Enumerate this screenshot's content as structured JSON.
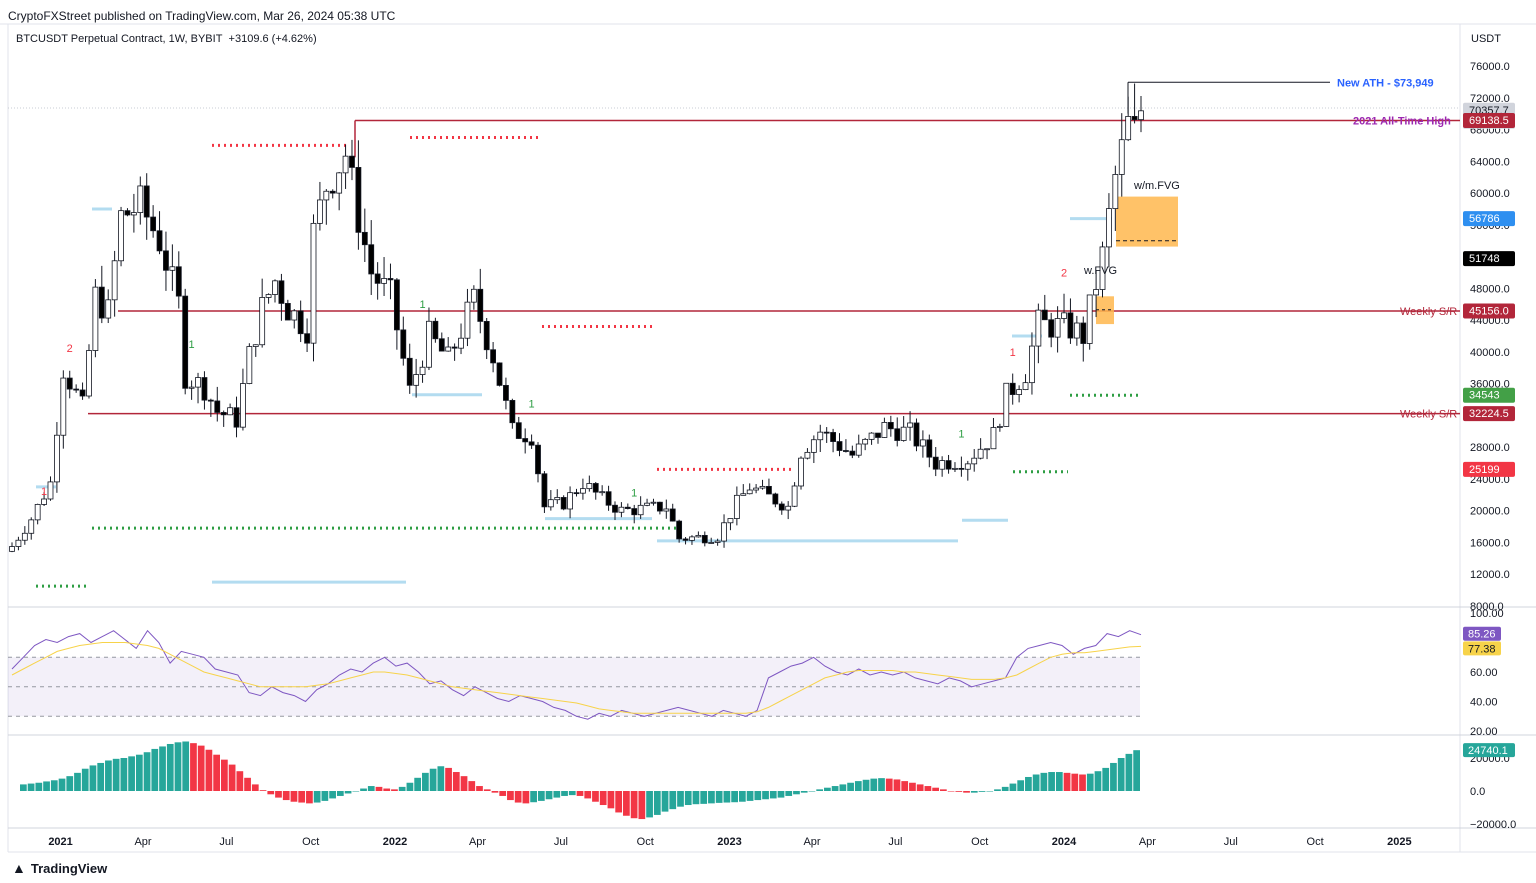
{
  "header": {
    "published": "CryptoFXStreet published on TradingView.com, Mar 26, 2024 05:38 UTC",
    "symbol": "BTCUSDT Perpetual Contract, 1W, BYBIT",
    "change": "+3109.6 (+4.62%)",
    "currency": "USDT"
  },
  "footer": {
    "brand": "TradingView"
  },
  "colors": {
    "up": "#ffffff",
    "down": "#000000",
    "sr": "#b2263a",
    "rsi": "#7e57c2",
    "rsi_ma": "#f7d34a",
    "hist_pos": "#26a69a",
    "hist_neg": "#f23645"
  },
  "chart_data": [
    {
      "type": "candlestick",
      "title": "BTCUSDT Perpetual Contract, 1W, BYBIT",
      "y_ticks": [
        8000,
        12000,
        16000,
        20000,
        24000,
        28000,
        32000,
        36000,
        40000,
        44000,
        48000,
        52000,
        56000,
        60000,
        64000,
        68000,
        72000,
        76000
      ],
      "y_tick_labels": [
        "8000.0",
        "12000.0",
        "16000.0",
        "20000.0",
        "24000.0",
        "28000.0",
        "32000.0",
        "36000.0",
        "40000.0",
        "44000.0",
        "48000.0",
        "52000.0",
        "56000.0",
        "60000.0",
        "64000.0",
        "68000.0",
        "72000.0",
        "76000.0"
      ],
      "x_ticks": [
        "2021",
        "Apr",
        "Jul",
        "Oct",
        "2022",
        "Apr",
        "Jul",
        "Oct",
        "2023",
        "Apr",
        "Jul",
        "Oct",
        "2024",
        "Apr",
        "Jul",
        "Oct",
        "2025"
      ],
      "x_tick_dates": [
        "2021-01-01",
        "2021-04-01",
        "2021-07-01",
        "2021-10-01",
        "2022-01-01",
        "2022-04-01",
        "2022-07-01",
        "2022-10-01",
        "2023-01-01",
        "2023-04-01",
        "2023-07-01",
        "2023-10-01",
        "2024-01-01",
        "2024-04-01",
        "2024-07-01",
        "2024-10-01",
        "2025-01-01"
      ],
      "close_path": [
        [
          "2020-11-09",
          15500
        ],
        [
          "2020-11-30",
          19000
        ],
        [
          "2020-12-21",
          23500
        ],
        [
          "2021-01-04",
          38000
        ],
        [
          "2021-01-25",
          33000
        ],
        [
          "2021-02-08",
          47000
        ],
        [
          "2021-02-22",
          45000
        ],
        [
          "2021-03-08",
          57000
        ],
        [
          "2021-03-29",
          58500
        ],
        [
          "2021-04-19",
          54000
        ],
        [
          "2021-05-10",
          46000
        ],
        [
          "2021-05-17",
          37000
        ],
        [
          "2021-06-07",
          35500
        ],
        [
          "2021-06-21",
          32500
        ],
        [
          "2021-07-12",
          31500
        ],
        [
          "2021-07-26",
          39500
        ],
        [
          "2021-08-09",
          45500
        ],
        [
          "2021-08-23",
          49000
        ],
        [
          "2021-09-06",
          45500
        ],
        [
          "2021-09-27",
          43000
        ],
        [
          "2021-10-04",
          55000
        ],
        [
          "2021-10-18",
          61000
        ],
        [
          "2021-11-08",
          65000
        ],
        [
          "2021-11-22",
          57000
        ],
        [
          "2021-12-06",
          50000
        ],
        [
          "2021-12-27",
          47000
        ],
        [
          "2022-01-17",
          35000
        ],
        [
          "2022-02-07",
          42000
        ],
        [
          "2022-02-28",
          39000
        ],
        [
          "2022-03-28",
          46500
        ],
        [
          "2022-04-18",
          39500
        ],
        [
          "2022-05-09",
          30000
        ],
        [
          "2022-05-30",
          29500
        ],
        [
          "2022-06-13",
          20500
        ],
        [
          "2022-07-04",
          21000
        ],
        [
          "2022-07-25",
          23500
        ],
        [
          "2022-08-15",
          21500
        ],
        [
          "2022-09-05",
          20000
        ],
        [
          "2022-10-24",
          20500
        ],
        [
          "2022-11-07",
          16500
        ],
        [
          "2022-12-19",
          16800
        ],
        [
          "2023-01-09",
          21000
        ],
        [
          "2023-01-23",
          23000
        ],
        [
          "2023-03-06",
          20500
        ],
        [
          "2023-03-20",
          27500
        ],
        [
          "2023-04-10",
          30000
        ],
        [
          "2023-05-15",
          27000
        ],
        [
          "2023-06-19",
          30500
        ],
        [
          "2023-07-17",
          29800
        ],
        [
          "2023-08-14",
          26000
        ],
        [
          "2023-09-18",
          26500
        ],
        [
          "2023-10-16",
          29500
        ],
        [
          "2023-10-30",
          34500
        ],
        [
          "2023-11-20",
          37500
        ],
        [
          "2023-12-04",
          43500
        ],
        [
          "2024-01-08",
          43000
        ],
        [
          "2024-01-22",
          42000
        ],
        [
          "2024-02-12",
          52000
        ],
        [
          "2024-02-26",
          62000
        ],
        [
          "2024-03-11",
          68500
        ],
        [
          "2024-03-18",
          67500
        ],
        [
          "2024-03-25",
          70357.7
        ]
      ],
      "annotations": [
        {
          "label": "New ATH - $73,949",
          "price": 73949
        },
        {
          "label": "2021 All-Time High",
          "price": 69138.5
        },
        {
          "label": "Weekly S/R",
          "price": 45156.0
        },
        {
          "label": "Weekly S/R",
          "price": 32224.5
        },
        {
          "label": "w/m.FVG",
          "from": 51748,
          "to": 56786
        },
        {
          "label": "w.FVG",
          "from": 43500,
          "to": 47000
        }
      ],
      "price_tags": [
        {
          "label": "70357.7",
          "sub": "5d 19h",
          "price": 70357.7,
          "bg": "#d1d4dc",
          "fg": "#131722"
        },
        {
          "label": "69138.5",
          "price": 69138.5,
          "bg": "#b2263a",
          "fg": "#ffffff"
        },
        {
          "label": "56786",
          "price": 56786,
          "bg": "#2e8ff0",
          "fg": "#ffffff"
        },
        {
          "label": "51748",
          "price": 51748,
          "bg": "#000000",
          "fg": "#ffffff"
        },
        {
          "label": "45156.0",
          "price": 45156.0,
          "bg": "#b2263a",
          "fg": "#ffffff"
        },
        {
          "label": "34543",
          "price": 34543,
          "bg": "#43a047",
          "fg": "#ffffff"
        },
        {
          "label": "32224.5",
          "price": 32224.5,
          "bg": "#b2263a",
          "fg": "#ffffff"
        },
        {
          "label": "25199",
          "price": 25199,
          "bg": "#f23645",
          "fg": "#ffffff"
        }
      ],
      "markers": [
        {
          "label": "1",
          "color": "red",
          "date": "2020-12-14",
          "price": 22000
        },
        {
          "label": "2",
          "color": "red",
          "date": "2021-01-11",
          "price": 40000
        },
        {
          "label": "1",
          "color": "green",
          "date": "2021-05-24",
          "price": 40500
        },
        {
          "label": "1",
          "color": "green",
          "date": "2022-01-31",
          "price": 45500
        },
        {
          "label": "1",
          "color": "green",
          "date": "2022-05-30",
          "price": 33000
        },
        {
          "label": "1",
          "color": "green",
          "date": "2022-09-19",
          "price": 21800
        },
        {
          "label": "1",
          "color": "green",
          "date": "2023-09-11",
          "price": 29200
        },
        {
          "label": "1",
          "color": "red",
          "date": "2023-11-06",
          "price": 39500
        },
        {
          "label": "2",
          "color": "red",
          "date": "2024-01-01",
          "price": 49500
        }
      ]
    },
    {
      "type": "line",
      "title": "RSI",
      "y_tick_labels": [
        "20.00",
        "40.00",
        "60.00",
        "100.00"
      ],
      "y_ticks": [
        20,
        40,
        60,
        100
      ],
      "bands": [
        30,
        50,
        70
      ],
      "series": [
        {
          "tag": "85.26",
          "last": 85.26,
          "values": [
            62,
            70,
            78,
            82,
            80,
            84,
            86,
            80,
            84,
            88,
            82,
            76,
            88,
            80,
            66,
            74,
            72,
            70,
            62,
            60,
            58,
            46,
            44,
            50,
            46,
            44,
            40,
            48,
            52,
            58,
            62,
            60,
            66,
            70,
            64,
            66,
            60,
            52,
            54,
            48,
            44,
            50,
            46,
            42,
            40,
            44,
            42,
            40,
            36,
            34,
            30,
            28,
            32,
            30,
            34,
            32,
            30,
            32,
            34,
            36,
            34,
            32,
            30,
            34,
            32,
            30,
            34,
            56,
            60,
            64,
            66,
            70,
            64,
            60,
            58,
            62,
            58,
            60,
            58,
            60,
            56,
            54,
            52,
            56,
            54,
            50,
            52,
            54,
            56,
            70,
            76,
            78,
            80,
            78,
            72,
            76,
            78,
            86,
            84,
            88,
            85.26
          ]
        },
        {
          "tag": "77.38",
          "last": 77.38,
          "values": [
            58,
            62,
            66,
            70,
            74,
            76,
            78,
            79,
            80,
            80,
            80,
            79,
            78,
            76,
            72,
            68,
            64,
            60,
            58,
            56,
            54,
            52,
            50,
            50,
            50,
            50,
            50,
            51,
            52,
            54,
            56,
            58,
            60,
            60,
            59,
            58,
            56,
            54,
            52,
            50,
            49,
            48,
            47,
            46,
            45,
            44,
            43,
            42,
            41,
            40,
            39,
            37,
            35,
            34,
            33,
            32,
            32,
            32,
            32,
            32,
            32,
            32,
            32,
            32,
            32,
            32,
            33,
            36,
            40,
            44,
            48,
            52,
            56,
            58,
            60,
            61,
            61,
            61,
            61,
            60,
            60,
            59,
            58,
            57,
            56,
            55,
            55,
            55,
            56,
            58,
            62,
            66,
            70,
            72,
            73,
            73,
            74,
            75,
            76,
            77,
            77.38
          ]
        }
      ]
    },
    {
      "type": "bar",
      "title": "Histogram",
      "y_tick_labels": [
        "20000.0",
        "0.0",
        "−20000.0"
      ],
      "y_ticks": [
        20000,
        0,
        -20000
      ],
      "last_tag": "24740.1",
      "values": [
        4000,
        4500,
        5000,
        5800,
        6500,
        7500,
        9000,
        11000,
        13500,
        15500,
        17000,
        18500,
        19500,
        20000,
        21000,
        22000,
        23500,
        25500,
        27000,
        28500,
        29500,
        30000,
        29000,
        27500,
        25000,
        22000,
        19000,
        16000,
        12000,
        8000,
        4000,
        500,
        -2000,
        -4000,
        -5500,
        -6500,
        -7000,
        -7500,
        -7000,
        -6000,
        -4500,
        -3000,
        -1500,
        0,
        1500,
        3000,
        2500,
        1500,
        1000,
        2500,
        5000,
        8000,
        11000,
        13500,
        15000,
        14000,
        11500,
        9000,
        6000,
        3000,
        1000,
        -1000,
        -3000,
        -5500,
        -7000,
        -7500,
        -6800,
        -6000,
        -5000,
        -4000,
        -3000,
        -2500,
        -3000,
        -4500,
        -6500,
        -8500,
        -10500,
        -13000,
        -15000,
        -16500,
        -17000,
        -16000,
        -14500,
        -12500,
        -11000,
        -9500,
        -8500,
        -8000,
        -7800,
        -7500,
        -7200,
        -7000,
        -6800,
        -6500,
        -6000,
        -5500,
        -5000,
        -4500,
        -4000,
        -3000,
        -2000,
        -1000,
        0,
        1000,
        2000,
        3000,
        4000,
        5000,
        6000,
        6800,
        7500,
        7800,
        7500,
        7000,
        6000,
        5000,
        4000,
        3000,
        2000,
        1000,
        0,
        -500,
        -1000,
        -1000,
        -500,
        0,
        1000,
        2500,
        4500,
        6500,
        8500,
        10000,
        11000,
        11500,
        11500,
        11000,
        10500,
        10000,
        10500,
        12000,
        14000,
        17000,
        20000,
        22500,
        24740.1
      ]
    }
  ]
}
